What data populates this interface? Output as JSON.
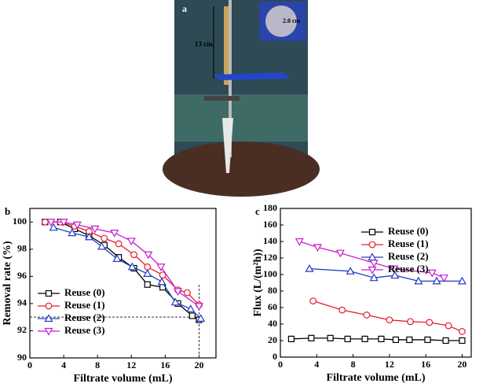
{
  "photo": {
    "label": "a",
    "annotations": [
      "13 cm",
      "2.0 cm"
    ]
  },
  "chart_data": [
    {
      "type": "line",
      "panel": "b",
      "xlabel": "Filtrate volume (mL)",
      "ylabel": "Removal rate (%)",
      "xlim": [
        0,
        22
      ],
      "ylim": [
        90,
        101
      ],
      "xticks": [
        0,
        4,
        8,
        12,
        16,
        20
      ],
      "yticks": [
        90,
        92,
        94,
        96,
        98,
        100
      ],
      "legend": "lower left",
      "hline": 93,
      "vline": {
        "x": 20,
        "ymax": 95.5
      },
      "series": [
        {
          "name": "Reuse (0)",
          "color": "#000000",
          "marker": "square",
          "x": [
            1.8,
            3.6,
            5.3,
            7,
            8.8,
            10.5,
            12.3,
            13.9,
            15.7,
            17.5,
            19.2,
            20
          ],
          "values": [
            100,
            100,
            99.5,
            99,
            98.3,
            97.4,
            96.6,
            95.4,
            95.2,
            94,
            93.1,
            92.8
          ]
        },
        {
          "name": "Reuse (1)",
          "color": "#e8192c",
          "marker": "circle",
          "x": [
            1.8,
            3.6,
            5.3,
            7,
            8.8,
            10.5,
            12.3,
            13.9,
            15.7,
            17.5,
            18.6,
            20
          ],
          "values": [
            100,
            100,
            99.7,
            99.3,
            98.8,
            98.4,
            97.6,
            96.7,
            96.1,
            95,
            94.8,
            93.9
          ]
        },
        {
          "name": "Reuse (2)",
          "color": "#1f3fbf",
          "marker": "triangle",
          "x": [
            2.8,
            5,
            7,
            8.5,
            10.3,
            12.1,
            13.9,
            15.6,
            17.2,
            19,
            20.2
          ],
          "values": [
            99.6,
            99.2,
            98.9,
            98.2,
            97.3,
            96.7,
            96.2,
            95.6,
            94.1,
            93.6,
            92.9
          ]
        },
        {
          "name": "Reuse (3)",
          "color": "#c21fd0",
          "marker": "down-triangle",
          "x": [
            2.5,
            4,
            5.6,
            7.7,
            10,
            12,
            14,
            15.5,
            17.5,
            20
          ],
          "values": [
            100,
            100,
            99.8,
            99.5,
            99.2,
            98.6,
            97.6,
            96.7,
            94.9,
            93.8
          ]
        }
      ]
    },
    {
      "type": "line",
      "panel": "c",
      "xlabel": "Filtrate volume (mL)",
      "ylabel": "Flux (L/(m²h))",
      "xlim": [
        0,
        21
      ],
      "ylim": [
        0,
        180
      ],
      "xticks": [
        0,
        4,
        8,
        12,
        16,
        20
      ],
      "yticks": [
        0,
        20,
        40,
        60,
        80,
        100,
        120,
        140,
        160,
        180
      ],
      "legend": "upper right",
      "series": [
        {
          "name": "Reuse (0)",
          "color": "#000000",
          "marker": "square",
          "x": [
            1.2,
            3.4,
            5.5,
            7.4,
            9.3,
            11.1,
            12.7,
            14.2,
            16.2,
            18.2,
            20
          ],
          "values": [
            22,
            23,
            23,
            22,
            22,
            22,
            21,
            21,
            21,
            20,
            20
          ]
        },
        {
          "name": "Reuse (1)",
          "color": "#e8192c",
          "marker": "circle",
          "x": [
            3.6,
            6.8,
            9.5,
            12,
            14.3,
            16.4,
            18.5,
            20
          ],
          "values": [
            68,
            57,
            51,
            45,
            43,
            42,
            38,
            31
          ]
        },
        {
          "name": "Reuse (2)",
          "color": "#1f3fbf",
          "marker": "triangle",
          "x": [
            3.2,
            7.7,
            10.3,
            12.6,
            15.2,
            17.2,
            20
          ],
          "values": [
            107,
            104,
            96,
            99,
            92,
            92,
            92
          ]
        },
        {
          "name": "Reuse (3)",
          "color": "#c21fd0",
          "marker": "down-triangle",
          "x": [
            2.1,
            4.1,
            6.6,
            10.3,
            12.5,
            16.7,
            18
          ],
          "values": [
            140,
            133,
            126,
            114,
            107,
            102,
            96
          ]
        }
      ]
    }
  ]
}
